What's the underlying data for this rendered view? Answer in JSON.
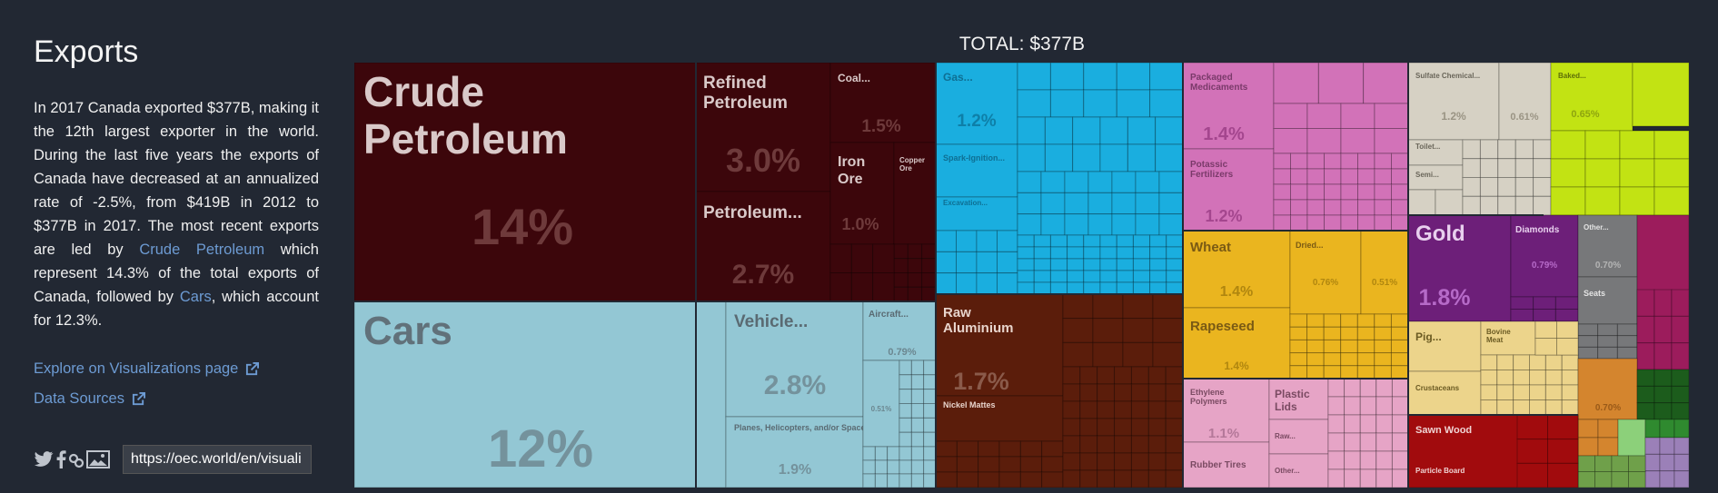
{
  "sidebar": {
    "title": "Exports",
    "desc_parts": {
      "p1": "In 2017 Canada exported $377B, making it the 12th largest exporter in the world. During the last five years the exports of Canada have decreased at an annualized rate of -2.5%, from $419B in 2012 to $377B in 2017. The most recent exports are led by ",
      "link1": "Crude Petroleum",
      "p2": " which represent 14.3% of the total exports of Canada, followed by ",
      "link2": "Cars",
      "p3": ", which account for 12.3%."
    },
    "explore_link": "Explore on Visualizations page",
    "sources_link": "Data Sources",
    "share_url": "https://oec.world/en/visuali",
    "link_color": "#6d9bd3"
  },
  "chart_data": {
    "type": "treemap",
    "title": "TOTAL: $377B",
    "items": [
      {
        "label": "Crude Petroleum",
        "value_label": "14%",
        "share": 14.3,
        "color": "#3c060b"
      },
      {
        "label": "Refined Petroleum",
        "value_label": "3.0%",
        "share": 3.0,
        "color": "#3c060b"
      },
      {
        "label": "Coal...",
        "value_label": "1.5%",
        "share": 1.5,
        "color": "#3c060b"
      },
      {
        "label": "Iron Ore",
        "value_label": "1.0%",
        "share": 1.0,
        "color": "#3c060b"
      },
      {
        "label": "Copper Ore",
        "value_label": "",
        "share": 0.5,
        "color": "#3c060b"
      },
      {
        "label": "Petroleum...",
        "value_label": "2.7%",
        "share": 2.7,
        "color": "#3c060b"
      },
      {
        "label": "Cars",
        "value_label": "12%",
        "share": 12.3,
        "color": "#93c7d4"
      },
      {
        "label": "Vehicle...",
        "value_label": "2.8%",
        "share": 2.8,
        "color": "#93c7d4"
      },
      {
        "label": "Aircraft...",
        "value_label": "0.79%",
        "share": 0.79,
        "color": "#93c7d4"
      },
      {
        "label": "",
        "value_label": "0.51%",
        "share": 0.51,
        "color": "#93c7d4"
      },
      {
        "label": "Planes, Helicopters, and/or Spacecraft",
        "value_label": "1.9%",
        "share": 1.9,
        "color": "#93c7d4"
      },
      {
        "label": "Gas...",
        "value_label": "1.2%",
        "share": 1.2,
        "color": "#1aaedf"
      },
      {
        "label": "Spark-Ignition...",
        "value_label": "",
        "share": 0.8,
        "color": "#1aaedf"
      },
      {
        "label": "Excavation...",
        "value_label": "",
        "share": 0.5,
        "color": "#1aaedf"
      },
      {
        "label": "Raw Aluminium",
        "value_label": "1.7%",
        "share": 1.7,
        "color": "#5b1d0b"
      },
      {
        "label": "Nickel Mattes",
        "value_label": "",
        "share": 0.6,
        "color": "#5b1d0b"
      },
      {
        "label": "Packaged Medicaments",
        "value_label": "1.4%",
        "share": 1.4,
        "color": "#d272b8"
      },
      {
        "label": "Potassic Fertilizers",
        "value_label": "1.2%",
        "share": 1.2,
        "color": "#d272b8"
      },
      {
        "label": "Sulfate Chemical...",
        "value_label": "1.2%",
        "share": 1.2,
        "color": "#d6d1c4"
      },
      {
        "label": "",
        "value_label": "0.61%",
        "share": 0.61,
        "color": "#d6d1c4"
      },
      {
        "label": "Toilet...",
        "value_label": "",
        "share": 0.3,
        "color": "#d6d1c4"
      },
      {
        "label": "Semi...",
        "value_label": "",
        "share": 0.3,
        "color": "#d6d1c4"
      },
      {
        "label": "Baked...",
        "value_label": "0.65%",
        "share": 0.65,
        "color": "#c2e313"
      },
      {
        "label": "Wheat",
        "value_label": "1.4%",
        "share": 1.4,
        "color": "#eab51f"
      },
      {
        "label": "Dried...",
        "value_label": "0.76%",
        "share": 0.76,
        "color": "#eab51f"
      },
      {
        "label": "",
        "value_label": "0.51%",
        "share": 0.51,
        "color": "#eab51f"
      },
      {
        "label": "Rapeseed",
        "value_label": "1.4%",
        "share": 1.4,
        "color": "#eab51f"
      },
      {
        "label": "Gold",
        "value_label": "1.8%",
        "share": 1.8,
        "color": "#6d1f79"
      },
      {
        "label": "Diamonds",
        "value_label": "0.79%",
        "share": 0.79,
        "color": "#6d1f79"
      },
      {
        "label": "Other...",
        "value_label": "0.70%",
        "share": 0.7,
        "color": "#77787a"
      },
      {
        "label": "Seats",
        "value_label": "",
        "share": 0.4,
        "color": "#77787a"
      },
      {
        "label": "Pig...",
        "value_label": "",
        "share": 0.6,
        "color": "#ecd48b"
      },
      {
        "label": "Bovine Meat",
        "value_label": "",
        "share": 0.5,
        "color": "#ecd48b"
      },
      {
        "label": "Crustaceans",
        "value_label": "",
        "share": 0.5,
        "color": "#ecd48b"
      },
      {
        "label": "",
        "value_label": "0.70%",
        "share": 0.7,
        "color": "#d4852e"
      },
      {
        "label": "Ethylene Polymers",
        "value_label": "1.1%",
        "share": 1.1,
        "color": "#e6a4c6"
      },
      {
        "label": "Plastic Lids",
        "value_label": "",
        "share": 0.5,
        "color": "#e6a4c6"
      },
      {
        "label": "Raw...",
        "value_label": "",
        "share": 0.3,
        "color": "#e6a4c6"
      },
      {
        "label": "Rubber Tires",
        "value_label": "",
        "share": 0.4,
        "color": "#e6a4c6"
      },
      {
        "label": "Other...",
        "value_label": "",
        "share": 0.3,
        "color": "#e6a4c6"
      },
      {
        "label": "Sawn Wood",
        "value_label": "",
        "share": 0.9,
        "color": "#a10b0d"
      },
      {
        "label": "Particle Board",
        "value_label": "",
        "share": 0.4,
        "color": "#a10b0d"
      }
    ],
    "category_colors": {
      "mineral_products": "#3c060b",
      "transportation": "#93c7d4",
      "machines": "#1aaedf",
      "metals": "#5b1d0b",
      "chemical_products": "#d272b8",
      "paper_goods": "#d6d1c4",
      "foodstuffs": "#c2e313",
      "vegetable_products": "#eab51f",
      "precious_metals": "#6d1f79",
      "instruments": "#77787a",
      "animal_products": "#ecd48b",
      "plastics_rubbers": "#e6a4c6",
      "wood_products": "#a10b0d",
      "miscellaneous": "#9c1c5c",
      "stone_glass": "#1c5c1c"
    }
  }
}
